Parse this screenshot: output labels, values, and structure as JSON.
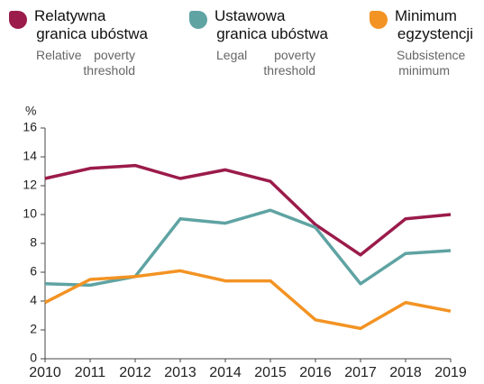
{
  "chart_data": {
    "type": "line",
    "y_unit": "%",
    "x": [
      2010,
      2011,
      2012,
      2013,
      2014,
      2015,
      2016,
      2017,
      2018,
      2019
    ],
    "xlim": [
      2010,
      2019
    ],
    "xticks": [
      2010,
      2011,
      2012,
      2013,
      2014,
      2015,
      2016,
      2017,
      2018,
      2019
    ],
    "ylim": [
      0,
      16
    ],
    "yticks": [
      0,
      2,
      4,
      6,
      8,
      10,
      12,
      14,
      16
    ],
    "series": [
      {
        "name": "Relatywna granica ubóstwa",
        "name_en": "Relative poverty threshold",
        "color": "#9b1b4b",
        "values": [
          12.5,
          13.2,
          13.4,
          12.5,
          13.1,
          12.3,
          9.3,
          7.2,
          9.7,
          10.0
        ]
      },
      {
        "name": "Ustawowa granica ubóstwa",
        "name_en": "Legal poverty threshold",
        "color": "#5fa3a3",
        "values": [
          5.2,
          5.1,
          5.7,
          9.7,
          9.4,
          10.3,
          9.1,
          5.2,
          7.3,
          7.5
        ]
      },
      {
        "name": "Minimum egzystencji",
        "name_en": "Subsistence minimum",
        "color": "#f39323",
        "values": [
          3.9,
          5.5,
          5.7,
          6.1,
          5.4,
          5.4,
          2.7,
          2.1,
          3.9,
          3.3
        ]
      }
    ]
  }
}
